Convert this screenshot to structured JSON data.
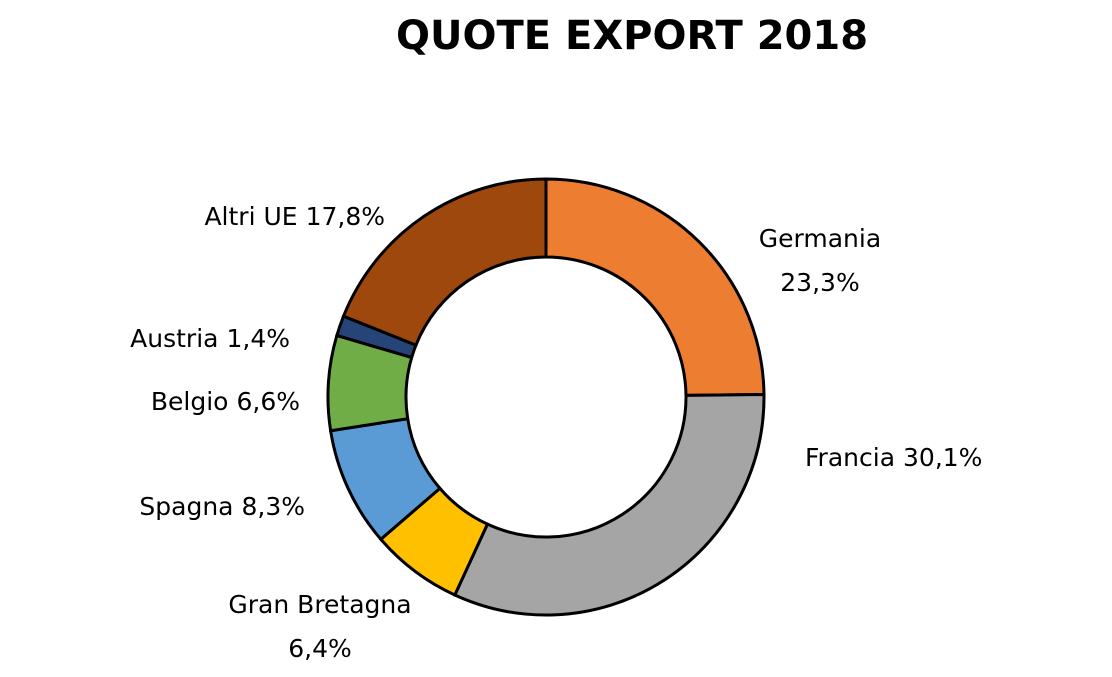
{
  "chart_data": {
    "type": "donut",
    "title": "QUOTE EXPORT 2018",
    "categories": [
      "Germania",
      "Francia",
      "Gran Bretagna",
      "Spagna",
      "Belgio",
      "Austria",
      "Altri UE"
    ],
    "values": [
      23.3,
      30.1,
      6.4,
      8.3,
      6.6,
      1.4,
      17.8
    ],
    "value_labels": [
      "23,3%",
      "30,1%",
      "6,4%",
      "8,3%",
      "6,6%",
      "1,4%",
      "17,8%"
    ],
    "colors": [
      "#ed7d31",
      "#a5a5a5",
      "#ffc000",
      "#5b9bd5",
      "#70ad47",
      "#264478",
      "#9e480e"
    ]
  }
}
